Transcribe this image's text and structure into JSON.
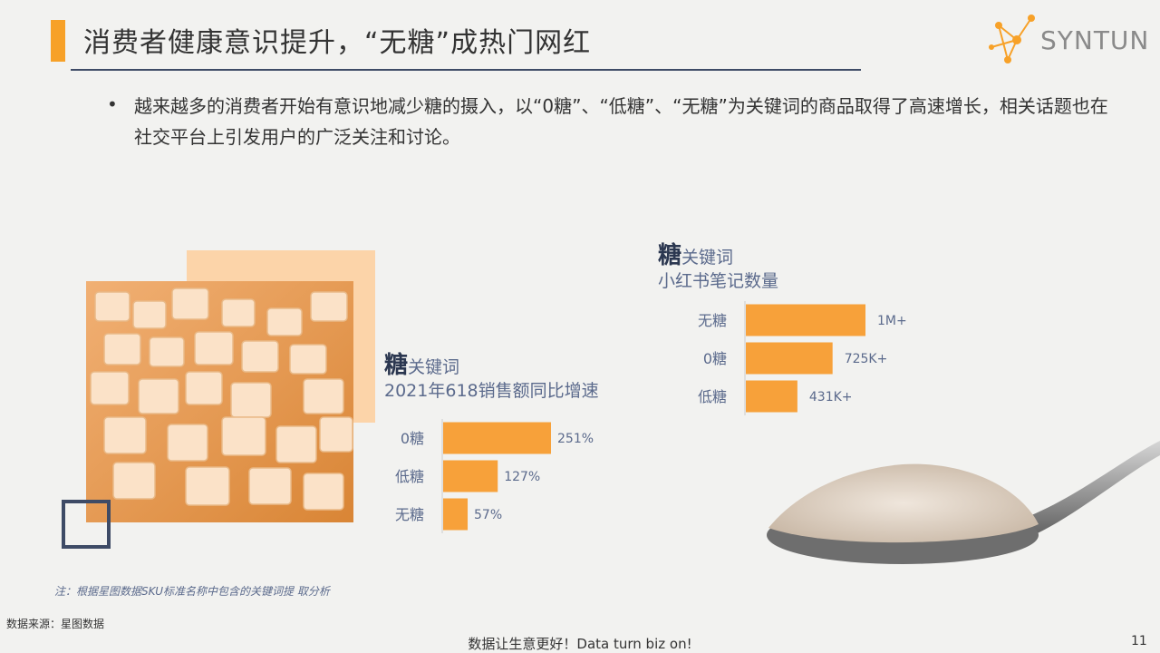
{
  "header": {
    "title": "消费者健康意识提升，“无糖”成热门网红",
    "logo_text": "SYNTUN"
  },
  "body": {
    "bullet_symbol": "•",
    "bullet_text": "越来越多的消费者开始有意识地减少糖的摄入，以“0糖”、“低糖”、“无糖”为关键词的商品取得了高速增长，相关话题也在社交平台上引发用户的广泛关注和讨论。"
  },
  "chart_left_head": {
    "big": "糖",
    "small": "关键词",
    "line2": "2021年618销售额同比增速"
  },
  "chart_right_head": {
    "big": "糖",
    "small": "关键词",
    "line2": "小红书笔记数量"
  },
  "chart_data": [
    {
      "type": "bar",
      "orientation": "horizontal",
      "title": "2021年618销售额同比增速",
      "categories": [
        "0糖",
        "低糖",
        "无糖"
      ],
      "values": [
        251,
        127,
        57
      ],
      "labels": [
        "251%",
        "127%",
        "57%"
      ],
      "unit": "%",
      "color": "#f7a13a"
    },
    {
      "type": "bar",
      "orientation": "horizontal",
      "title": "小红书笔记数量",
      "categories": [
        "无糖",
        "0糖",
        "低糖"
      ],
      "values": [
        1000000,
        725000,
        431000
      ],
      "labels": [
        "1M+",
        "725K+",
        "431K+"
      ],
      "color": "#f7a13a"
    }
  ],
  "footer": {
    "note": "注：根据星图数据SKU标准名称中包含的关键词提 取分析",
    "source": "数据来源：星图数据",
    "slogan": "数据让生意更好！Data turn biz on!",
    "page": "11"
  },
  "colors": {
    "accent": "#f7a128",
    "navy": "#3e4b66",
    "bar": "#f7a13a",
    "text_blue": "#5b6a8c"
  }
}
